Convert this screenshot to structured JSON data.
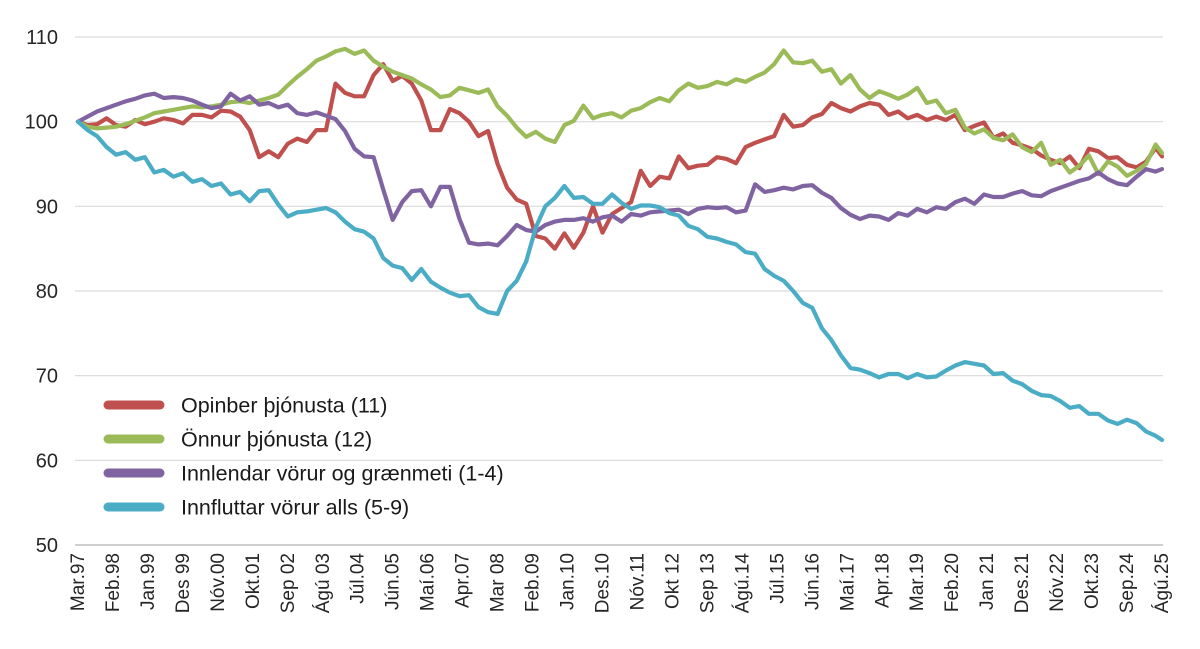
{
  "figure": {
    "aria_label": "Línurit: vísitölur verðlags eftir flokkum, Mar.97 til Ágú.25",
    "background": "#ffffff"
  },
  "chart_data": {
    "type": "line",
    "title": "",
    "xlabel": "",
    "ylabel": "",
    "ylim": [
      50,
      110
    ],
    "y_ticks": [
      110,
      100,
      90,
      80,
      70,
      60,
      50
    ],
    "grid": true,
    "gridline_color": "#d9d9d9",
    "axis_line_color": "#bfbfbf",
    "tick_text_color": "#262626",
    "legend_position": "inside-bottom-left",
    "x_tick_interval_months": 11,
    "sample_step_months": 3,
    "total_months": 341,
    "x_tick_labels": [
      "Mar.97",
      "Feb.98",
      "Jan.99",
      "Des 99",
      "Nóv.00",
      "Okt.01",
      "Sep 02",
      "Ágú 03",
      "Júl.04",
      "Jún.05",
      "Maí.06",
      "Apr.07",
      "Mar 08",
      "Feb.09",
      "Jan.10",
      "Des.10",
      "Nóv.11",
      "Okt 12",
      "Sep 13",
      "Ágú.14",
      "Júl.15",
      "Jún.16",
      "Maí.17",
      "Apr.18",
      "Mar.19",
      "Feb.20",
      "Jan 21",
      "Des.21",
      "Nóv.22",
      "Okt.23",
      "Sep.24",
      "Ágú.25"
    ],
    "series": [
      {
        "name": "Opinber þjónusta (11)",
        "slug": "opinber-thjonusta",
        "color": "#C0504D",
        "values": [
          100,
          99.6,
          99.7,
          100.4,
          99.6,
          99.4,
          100.2,
          99.7,
          100.0,
          100.4,
          100.2,
          99.8,
          100.8,
          100.8,
          100.5,
          101.3,
          101.2,
          100.6,
          99.0,
          95.8,
          96.5,
          95.8,
          97.4,
          98.0,
          97.6,
          99.0,
          99.0,
          104.5,
          103.4,
          103.0,
          103.0,
          105.5,
          106.8,
          104.8,
          105.4,
          104.5,
          102.5,
          99.0,
          99.0,
          101.5,
          101.0,
          100.0,
          98.3,
          98.9,
          95.0,
          92.2,
          90.8,
          90.3,
          86.5,
          86.2,
          85.0,
          86.8,
          85.1,
          86.9,
          90.0,
          86.9,
          89.1,
          89.8,
          90.5,
          94.2,
          92.4,
          93.5,
          93.3,
          95.9,
          94.5,
          94.8,
          94.9,
          95.8,
          95.6,
          95.1,
          97.0,
          97.5,
          97.9,
          98.3,
          100.8,
          99.4,
          99.6,
          100.5,
          100.9,
          102.2,
          101.6,
          101.2,
          101.8,
          102.2,
          102.0,
          100.8,
          101.2,
          100.4,
          100.8,
          100.2,
          100.6,
          100.2,
          100.8,
          99.0,
          99.5,
          99.9,
          98.1,
          98.6,
          97.5,
          97.2,
          96.8,
          96.0,
          95.5,
          95.1,
          95.9,
          94.5,
          96.8,
          96.5,
          95.7,
          95.8,
          94.9,
          94.6,
          95.3,
          96.9,
          95.9
        ]
      },
      {
        "name": "Önnur þjónusta (12)",
        "slug": "onnur-thjonusta",
        "color": "#9BBB59",
        "values": [
          100,
          99.4,
          99.2,
          99.3,
          99.4,
          99.7,
          100.1,
          100.5,
          101.0,
          101.2,
          101.4,
          101.6,
          101.8,
          101.7,
          101.8,
          102.0,
          102.3,
          102.4,
          102.2,
          102.5,
          102.8,
          103.2,
          104.3,
          105.3,
          106.2,
          107.2,
          107.7,
          108.3,
          108.6,
          108.0,
          108.4,
          107.2,
          106.5,
          105.9,
          105.5,
          105.1,
          104.4,
          103.8,
          102.9,
          103.1,
          104.0,
          103.7,
          103.4,
          103.8,
          101.8,
          100.7,
          99.3,
          98.2,
          98.8,
          98.0,
          97.6,
          99.6,
          100.1,
          101.9,
          100.4,
          100.8,
          101.0,
          100.5,
          101.3,
          101.6,
          102.3,
          102.8,
          102.4,
          103.7,
          104.5,
          104.0,
          104.2,
          104.7,
          104.4,
          105.0,
          104.7,
          105.3,
          105.8,
          106.8,
          108.4,
          107.0,
          106.9,
          107.2,
          105.9,
          106.2,
          104.5,
          105.5,
          103.8,
          102.8,
          103.6,
          103.2,
          102.7,
          103.2,
          104.0,
          102.2,
          102.5,
          101.0,
          101.4,
          99.3,
          98.6,
          99.1,
          98.1,
          97.8,
          98.5,
          97.0,
          96.4,
          97.5,
          94.9,
          95.5,
          94.0,
          94.8,
          96.0,
          93.8,
          95.3,
          94.7,
          93.6,
          94.2,
          95.0,
          97.3,
          96.3
        ]
      },
      {
        "name": "Innlendar vörur og grænmeti (1-4)",
        "slug": "innlendar-vorur",
        "color": "#8064A2",
        "values": [
          100,
          100.6,
          101.2,
          101.6,
          102.0,
          102.4,
          102.7,
          103.1,
          103.3,
          102.8,
          102.9,
          102.8,
          102.5,
          102.0,
          101.6,
          101.8,
          103.3,
          102.5,
          103.0,
          102.0,
          102.2,
          101.7,
          102.0,
          101.0,
          100.8,
          101.1,
          100.7,
          100.3,
          98.9,
          96.8,
          95.9,
          95.8,
          92.0,
          88.4,
          90.5,
          91.8,
          91.9,
          90.0,
          92.3,
          92.3,
          88.5,
          85.7,
          85.5,
          85.6,
          85.4,
          86.5,
          87.8,
          87.2,
          87.0,
          87.8,
          88.2,
          88.4,
          88.4,
          88.6,
          88.2,
          88.7,
          88.9,
          88.2,
          89.1,
          88.9,
          89.3,
          89.4,
          89.5,
          89.6,
          89.1,
          89.7,
          89.9,
          89.8,
          89.9,
          89.3,
          89.5,
          92.6,
          91.7,
          91.9,
          92.2,
          92.0,
          92.4,
          92.5,
          91.6,
          91.0,
          89.8,
          89.0,
          88.5,
          88.9,
          88.8,
          88.4,
          89.2,
          88.9,
          89.7,
          89.3,
          89.9,
          89.7,
          90.5,
          90.9,
          90.3,
          91.4,
          91.1,
          91.1,
          91.5,
          91.8,
          91.3,
          91.2,
          91.8,
          92.2,
          92.6,
          93.0,
          93.3,
          94.0,
          93.2,
          92.7,
          92.5,
          93.5,
          94.4,
          94.1,
          94.4
        ]
      },
      {
        "name": "Innfluttar vörur alls (5-9)",
        "slug": "innfluttar-vorur",
        "color": "#4BACC6",
        "values": [
          100,
          99.0,
          98.3,
          97.0,
          96.1,
          96.4,
          95.5,
          95.8,
          94.0,
          94.3,
          93.5,
          93.9,
          92.9,
          93.2,
          92.4,
          92.7,
          91.4,
          91.7,
          90.6,
          91.8,
          91.9,
          90.2,
          88.8,
          89.3,
          89.4,
          89.6,
          89.8,
          89.3,
          88.2,
          87.3,
          87.0,
          86.2,
          83.9,
          83.0,
          82.7,
          81.3,
          82.6,
          81.1,
          80.4,
          79.8,
          79.4,
          79.5,
          78.1,
          77.5,
          77.3,
          80.0,
          81.2,
          83.5,
          87.5,
          90.0,
          91.0,
          92.4,
          91.0,
          91.1,
          90.3,
          90.3,
          91.4,
          90.4,
          89.7,
          90.1,
          90.1,
          89.9,
          89.2,
          88.9,
          87.7,
          87.3,
          86.4,
          86.2,
          85.8,
          85.5,
          84.6,
          84.4,
          82.6,
          81.8,
          81.2,
          80.0,
          78.6,
          78.0,
          75.6,
          74.2,
          72.4,
          70.9,
          70.7,
          70.3,
          69.8,
          70.2,
          70.2,
          69.7,
          70.2,
          69.8,
          69.9,
          70.6,
          71.2,
          71.6,
          71.4,
          71.2,
          70.2,
          70.3,
          69.4,
          69.0,
          68.2,
          67.7,
          67.6,
          67.0,
          66.2,
          66.4,
          65.5,
          65.5,
          64.7,
          64.3,
          64.8,
          64.4,
          63.4,
          62.9,
          62.4
        ]
      }
    ]
  }
}
